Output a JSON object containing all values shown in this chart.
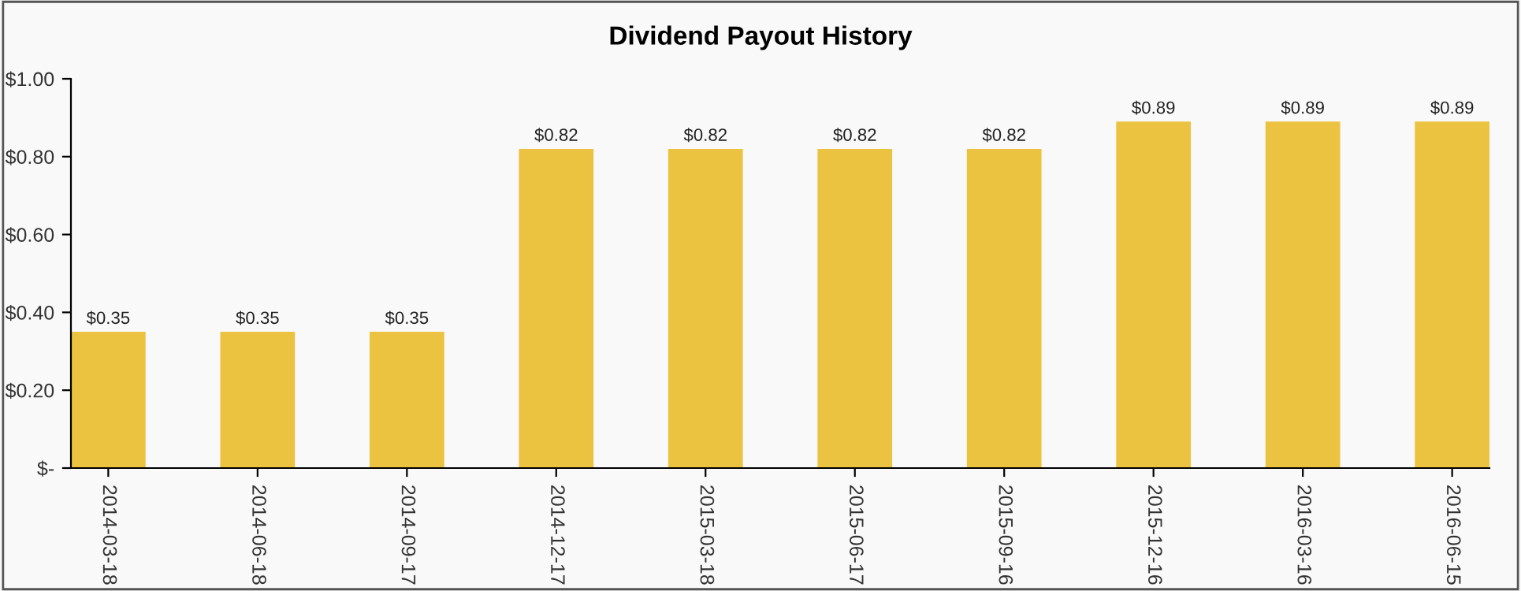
{
  "chart_data": {
    "type": "bar",
    "title": "Dividend Payout History",
    "categories": [
      "2014-03-18",
      "2014-06-18",
      "2014-09-17",
      "2014-12-17",
      "2015-03-18",
      "2015-06-17",
      "2015-09-16",
      "2015-12-16",
      "2016-03-16",
      "2016-06-15"
    ],
    "values": [
      0.35,
      0.35,
      0.35,
      0.82,
      0.82,
      0.82,
      0.82,
      0.89,
      0.89,
      0.89
    ],
    "value_labels": [
      "$0.35",
      "$0.35",
      "$0.35",
      "$0.82",
      "$0.82",
      "$0.82",
      "$0.82",
      "$0.89",
      "$0.89",
      "$0.89"
    ],
    "color": "#ecc241",
    "ylim": [
      0,
      1.0
    ],
    "yticks": [
      {
        "value": 0,
        "label": "$-"
      },
      {
        "value": 0.2,
        "label": "$0.20"
      },
      {
        "value": 0.4,
        "label": "$0.40"
      },
      {
        "value": 0.6,
        "label": "$0.60"
      },
      {
        "value": 0.8,
        "label": "$0.80"
      },
      {
        "value": 1.0,
        "label": "$1.00"
      }
    ],
    "grid": false,
    "legend": false
  }
}
